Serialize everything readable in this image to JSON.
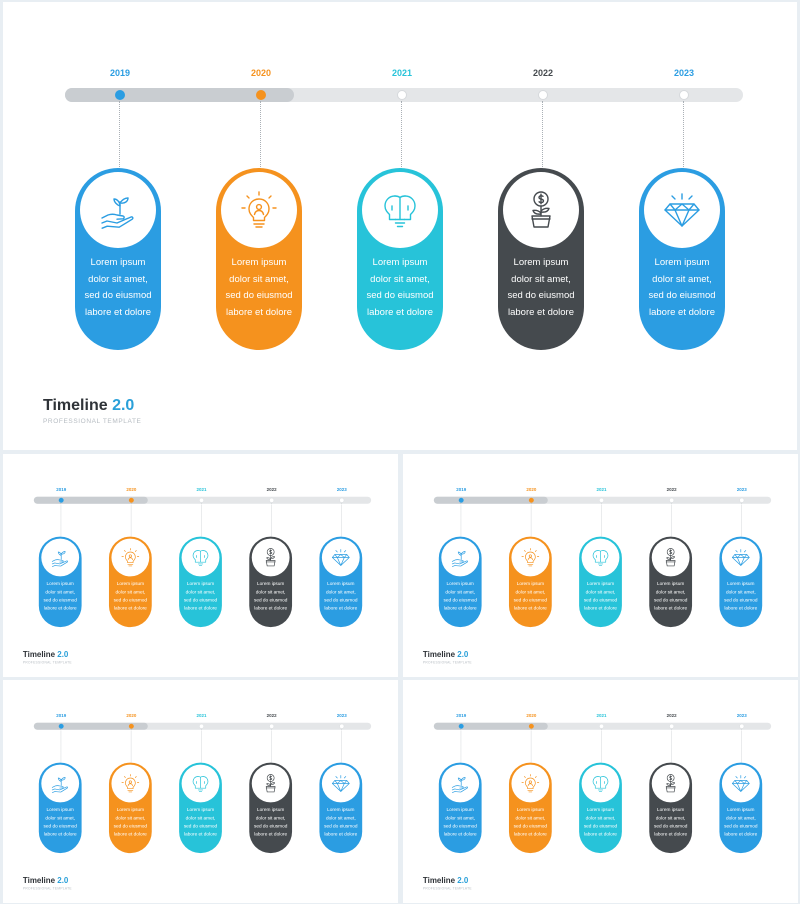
{
  "timeline": {
    "items": [
      {
        "year": "2019",
        "text": [
          "Lorem ipsum",
          "dolor sit amet,",
          "sed do eiusmod",
          "labore et dolore"
        ],
        "icon": "hand-plant-icon",
        "color": "#2b9de2",
        "progress_reached": true
      },
      {
        "year": "2020",
        "text": [
          "Lorem ipsum",
          "dolor sit amet,",
          "sed do eiusmod",
          "labore et dolore"
        ],
        "icon": "lightbulb-person-icon",
        "color": "#f5921e",
        "progress_reached": true
      },
      {
        "year": "2021",
        "text": [
          "Lorem ipsum",
          "dolor sit amet,",
          "sed do eiusmod",
          "labore et dolore"
        ],
        "icon": "double-lightbulb-icon",
        "color": "#27c3d9",
        "progress_reached": false
      },
      {
        "year": "2022",
        "text": [
          "Lorem ipsum",
          "dolor sit amet,",
          "sed do eiusmod",
          "labore et dolore"
        ],
        "icon": "money-plant-icon",
        "color": "#454a4e",
        "progress_reached": false
      },
      {
        "year": "2023",
        "text": [
          "Lorem ipsum",
          "dolor sit amet,",
          "sed do eiusmod",
          "labore et dolore"
        ],
        "icon": "diamond-icon",
        "color": "#2b9de2",
        "progress_reached": false
      }
    ],
    "year_label_colors": [
      "#2b9de2",
      "#f5921e",
      "#27c3d9",
      "#454a4e",
      "#2b9de2"
    ]
  },
  "title": {
    "word": "Timeline",
    "number": "2.0",
    "subtitle": "PROFESSIONAL TEMPLATE"
  },
  "colors": {
    "title_accent": "#2aa0d9",
    "track": "#e4e6e8",
    "track_progress": "#c9cdd1"
  }
}
